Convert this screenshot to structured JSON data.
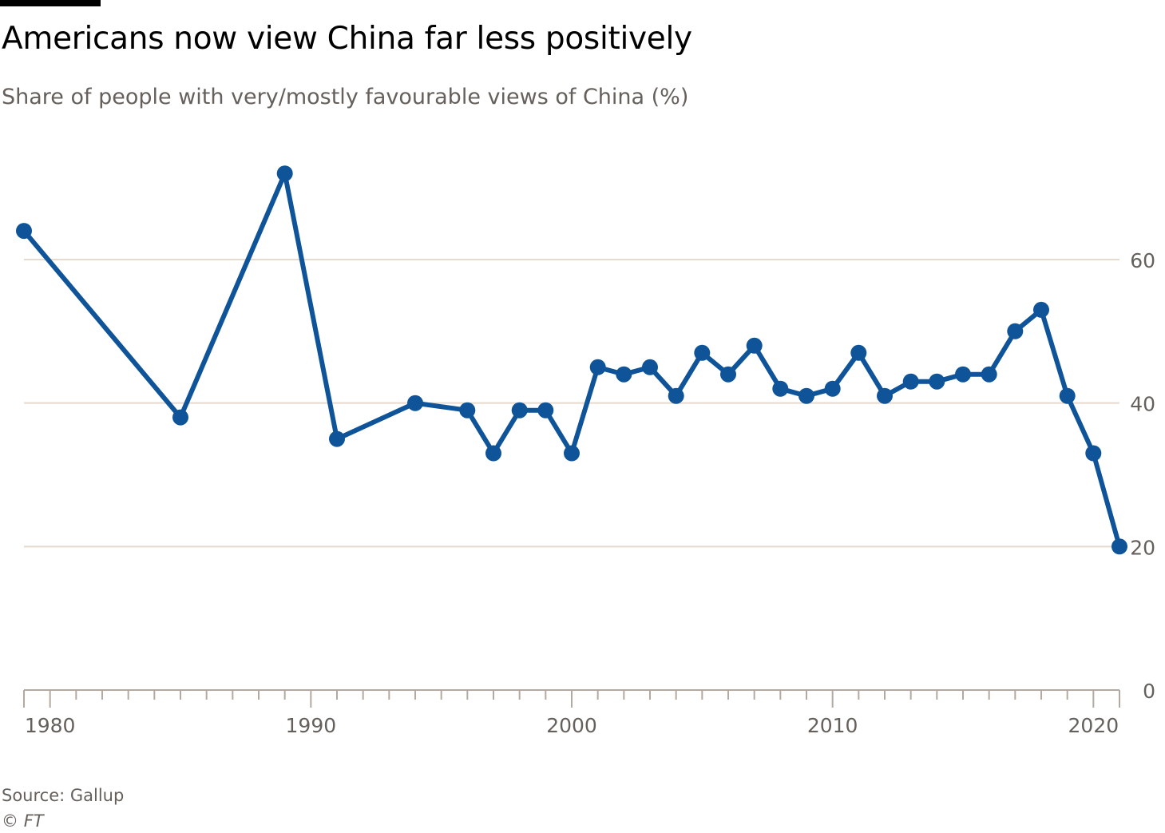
{
  "header": {
    "title": "Americans now view China far less positively",
    "subtitle": "Share of people with very/mostly favourable views of China (%)"
  },
  "footer": {
    "source": "Source: Gallup",
    "copyright_symbol": "©",
    "copyright_org": "FT"
  },
  "colors": {
    "line": "#0f5499",
    "grid": "#e6d9ce",
    "axis": "#b3a9a0",
    "tick_text": "#66605c"
  },
  "chart_data": {
    "type": "line",
    "title": "Americans now view China far less positively",
    "subtitle": "Share of people with very/mostly favourable views of China (%)",
    "xlabel": "",
    "ylabel": "",
    "xlim": [
      1979,
      2021
    ],
    "ylim": [
      0,
      75
    ],
    "x_ticks": [
      1980,
      1990,
      2000,
      2010,
      2020
    ],
    "y_ticks": [
      0,
      20,
      40,
      60
    ],
    "y_axis_side": "right",
    "grid": true,
    "x": [
      1979,
      1985,
      1989,
      1991,
      1994,
      1996,
      1997,
      1998,
      1999,
      2000,
      2001,
      2002,
      2003,
      2004,
      2005,
      2006,
      2007,
      2008,
      2009,
      2010,
      2011,
      2012,
      2013,
      2014,
      2015,
      2016,
      2017,
      2018,
      2019,
      2020,
      2021
    ],
    "series": [
      {
        "values": [
          64,
          38,
          72,
          35,
          40,
          39,
          33,
          39,
          39,
          33,
          45,
          44,
          45,
          41,
          47,
          44,
          48,
          42,
          41,
          42,
          47,
          41,
          43,
          43,
          44,
          44,
          50,
          53,
          41,
          33,
          20
        ]
      }
    ]
  }
}
